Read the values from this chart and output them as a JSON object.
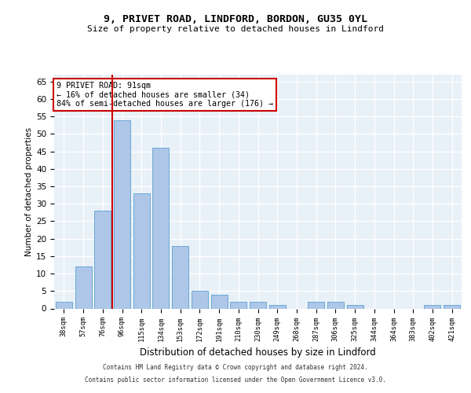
{
  "title1": "9, PRIVET ROAD, LINDFORD, BORDON, GU35 0YL",
  "title2": "Size of property relative to detached houses in Lindford",
  "xlabel": "Distribution of detached houses by size in Lindford",
  "ylabel": "Number of detached properties",
  "categories": [
    "38sqm",
    "57sqm",
    "76sqm",
    "96sqm",
    "115sqm",
    "134sqm",
    "153sqm",
    "172sqm",
    "191sqm",
    "210sqm",
    "230sqm",
    "249sqm",
    "268sqm",
    "287sqm",
    "306sqm",
    "325sqm",
    "344sqm",
    "364sqm",
    "383sqm",
    "402sqm",
    "421sqm"
  ],
  "values": [
    2,
    12,
    28,
    54,
    33,
    46,
    18,
    5,
    4,
    2,
    2,
    1,
    0,
    2,
    2,
    1,
    0,
    0,
    0,
    1,
    1
  ],
  "bar_color": "#aec6e8",
  "bar_edge_color": "#6aaad4",
  "vline_x": 2.5,
  "vline_color": "#cc0000",
  "annotation_text": "9 PRIVET ROAD: 91sqm\n← 16% of detached houses are smaller (34)\n84% of semi-detached houses are larger (176) →",
  "annotation_box_color": "#ffffff",
  "annotation_box_edge_color": "#cc0000",
  "ylim": [
    0,
    67
  ],
  "yticks": [
    0,
    5,
    10,
    15,
    20,
    25,
    30,
    35,
    40,
    45,
    50,
    55,
    60,
    65
  ],
  "background_color": "#e8f0f8",
  "grid_color": "#ffffff",
  "footer1": "Contains HM Land Registry data © Crown copyright and database right 2024.",
  "footer2": "Contains public sector information licensed under the Open Government Licence v3.0."
}
